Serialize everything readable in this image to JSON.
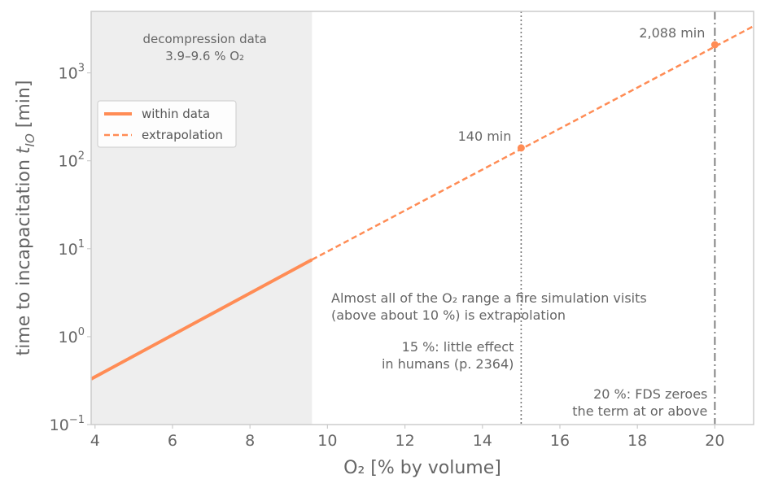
{
  "chart_data": {
    "type": "line",
    "xlabel": "O₂ [% by volume]",
    "ylabel_main": "time to incapacitation ",
    "ylabel_var": "t",
    "ylabel_sub": "IO",
    "ylabel_unit": " [min]",
    "xlim": [
      3.9,
      21.0
    ],
    "ylim": [
      0.1,
      5000
    ],
    "yscale": "log",
    "xticks": [
      "4",
      "6",
      "8",
      "10",
      "12",
      "14",
      "16",
      "18",
      "20"
    ],
    "yticks": [
      {
        "base": "10",
        "exp": "−1"
      },
      {
        "base": "10",
        "exp": "0"
      },
      {
        "base": "10",
        "exp": "1"
      },
      {
        "base": "10",
        "exp": "2"
      },
      {
        "base": "10",
        "exp": "3"
      }
    ],
    "series": [
      {
        "name": "within data",
        "style": "solid",
        "x": [
          3.9,
          9.6
        ],
        "y": [
          0.33,
          7.5
        ]
      },
      {
        "name": "extrapolation",
        "style": "dashed",
        "x": [
          9.6,
          21.0
        ],
        "y": [
          7.5,
          3400
        ]
      }
    ],
    "points": [
      {
        "x": 15,
        "y": 140,
        "label": "140 min"
      },
      {
        "x": 20,
        "y": 2088,
        "label": "2,088 min"
      }
    ],
    "shaded_region": {
      "x": [
        3.9,
        9.6
      ],
      "label_line1": "decompression data",
      "label_line2": "3.9–9.6 % O₂"
    },
    "vlines": [
      {
        "x": 15,
        "style": "dotted",
        "label_line1": "15 %: little effect",
        "label_line2": "in humans (p. 2364)"
      },
      {
        "x": 20,
        "style": "dashdot",
        "label_line1": "20 %: FDS zeroes",
        "label_line2": "the term at or above"
      }
    ],
    "annotation_line1": "Almost all of the O₂ range a fire simulation visits",
    "annotation_line2": "(above about 10 %) is extrapolation",
    "legend_position": "upper-left",
    "grid": false,
    "colors": {
      "series": "#ff8c55",
      "shade": "#eeeeee",
      "vline": "#777777",
      "axis": "#cccccc",
      "text": "#666666"
    }
  }
}
